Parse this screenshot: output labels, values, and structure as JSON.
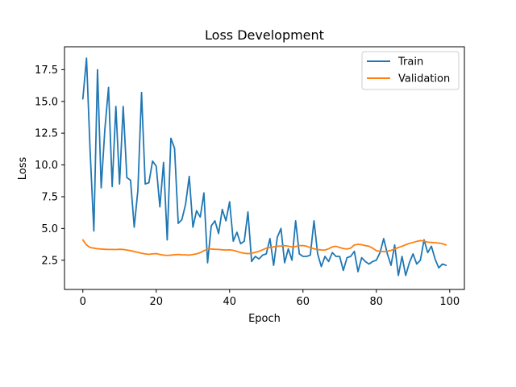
{
  "chart_data": {
    "type": "line",
    "title": "Loss Development",
    "xlabel": "Epoch",
    "ylabel": "Loss",
    "xlim": [
      -5,
      104
    ],
    "ylim": [
      0.2,
      19.3
    ],
    "xticks": [
      0,
      20,
      40,
      60,
      80,
      100
    ],
    "yticks": [
      2.5,
      5.0,
      7.5,
      10.0,
      12.5,
      15.0,
      17.5
    ],
    "ytick_labels": [
      "2.5",
      "5.0",
      "7.5",
      "10.0",
      "12.5",
      "15.0",
      "17.5"
    ],
    "grid": false,
    "legend_position": "top-right",
    "x": [
      0,
      1,
      2,
      3,
      4,
      5,
      6,
      7,
      8,
      9,
      10,
      11,
      12,
      13,
      14,
      15,
      16,
      17,
      18,
      19,
      20,
      21,
      22,
      23,
      24,
      25,
      26,
      27,
      28,
      29,
      30,
      31,
      32,
      33,
      34,
      35,
      36,
      37,
      38,
      39,
      40,
      41,
      42,
      43,
      44,
      45,
      46,
      47,
      48,
      49,
      50,
      51,
      52,
      53,
      54,
      55,
      56,
      57,
      58,
      59,
      60,
      61,
      62,
      63,
      64,
      65,
      66,
      67,
      68,
      69,
      70,
      71,
      72,
      73,
      74,
      75,
      76,
      77,
      78,
      79,
      80,
      81,
      82,
      83,
      84,
      85,
      86,
      87,
      88,
      89,
      90,
      91,
      92,
      93,
      94,
      95,
      96,
      97,
      98,
      99
    ],
    "series": [
      {
        "name": "Train",
        "color": "#1f77b4",
        "values": [
          15.2,
          18.4,
          11.0,
          4.8,
          17.5,
          8.2,
          12.8,
          16.1,
          8.3,
          14.6,
          8.5,
          14.6,
          9.0,
          8.8,
          5.1,
          8.0,
          15.7,
          8.5,
          8.6,
          10.3,
          9.9,
          6.7,
          10.2,
          4.1,
          12.1,
          11.3,
          5.4,
          5.7,
          6.9,
          9.1,
          5.1,
          6.4,
          5.9,
          7.8,
          2.3,
          5.2,
          5.6,
          4.6,
          6.5,
          5.6,
          7.1,
          4.0,
          4.7,
          3.8,
          4.0,
          6.3,
          2.4,
          2.8,
          2.6,
          2.9,
          3.0,
          4.2,
          2.1,
          4.3,
          5.0,
          2.3,
          3.4,
          2.5,
          5.6,
          3.0,
          2.8,
          2.8,
          2.9,
          5.6,
          3.0,
          2.0,
          2.8,
          2.4,
          3.1,
          2.8,
          2.8,
          1.7,
          2.7,
          2.8,
          3.2,
          1.6,
          2.7,
          2.4,
          2.2,
          2.4,
          2.5,
          3.1,
          4.2,
          3.0,
          2.1,
          3.7,
          1.3,
          2.8,
          1.3,
          2.3,
          3.0,
          2.2,
          2.5,
          4.1,
          3.1,
          3.6,
          2.6,
          1.9,
          2.2,
          2.1
        ]
      },
      {
        "name": "Validation",
        "color": "#ff7f0e",
        "values": [
          4.1,
          3.7,
          3.5,
          3.45,
          3.4,
          3.38,
          3.36,
          3.35,
          3.35,
          3.34,
          3.36,
          3.35,
          3.3,
          3.25,
          3.18,
          3.12,
          3.05,
          3.0,
          2.96,
          3.0,
          3.02,
          2.95,
          2.9,
          2.88,
          2.9,
          2.93,
          2.95,
          2.93,
          2.92,
          2.9,
          2.95,
          3.0,
          3.1,
          3.25,
          3.38,
          3.38,
          3.36,
          3.35,
          3.32,
          3.3,
          3.32,
          3.28,
          3.2,
          3.1,
          3.05,
          3.02,
          3.05,
          3.12,
          3.2,
          3.32,
          3.45,
          3.5,
          3.55,
          3.6,
          3.62,
          3.65,
          3.6,
          3.55,
          3.58,
          3.65,
          3.65,
          3.6,
          3.5,
          3.4,
          3.35,
          3.3,
          3.3,
          3.4,
          3.55,
          3.6,
          3.5,
          3.42,
          3.38,
          3.45,
          3.7,
          3.75,
          3.72,
          3.65,
          3.6,
          3.45,
          3.25,
          3.2,
          3.18,
          3.2,
          3.28,
          3.38,
          3.5,
          3.6,
          3.72,
          3.82,
          3.9,
          3.98,
          4.05,
          4.0,
          3.92,
          3.9,
          3.88,
          3.85,
          3.8,
          3.7
        ]
      }
    ]
  }
}
